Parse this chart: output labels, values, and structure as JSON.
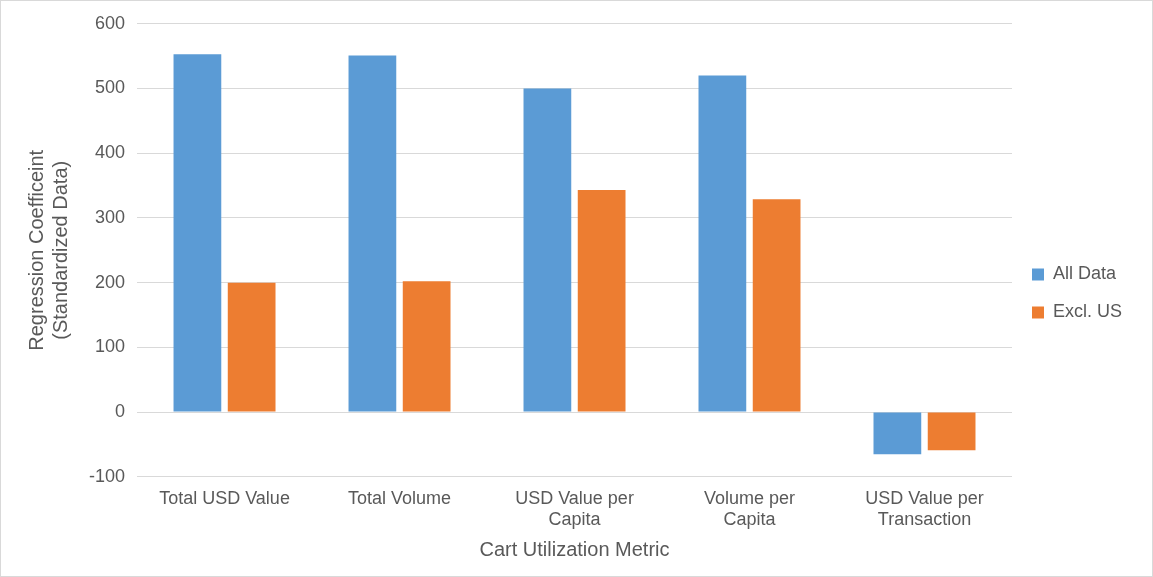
{
  "chart_data": {
    "type": "bar",
    "xlabel": "Cart Utilization Metric",
    "ylabel": "Regression Coefficeint (Standardized Data)",
    "categories": [
      "Total USD Value",
      "Total Volume",
      "USD Value per Capita",
      "Volume per Capita",
      "USD Value per Transaction"
    ],
    "series": [
      {
        "name": "All Data",
        "color": "#5b9bd5",
        "values": [
          553,
          551,
          500,
          520,
          -65
        ]
      },
      {
        "name": "Excl. US",
        "color": "#ed7d31",
        "values": [
          200,
          202,
          343,
          329,
          -59
        ]
      }
    ],
    "ylim": [
      -100,
      600
    ],
    "yticks": [
      -100,
      0,
      100,
      200,
      300,
      400,
      500,
      600
    ],
    "grid": "y",
    "legend": "right"
  }
}
